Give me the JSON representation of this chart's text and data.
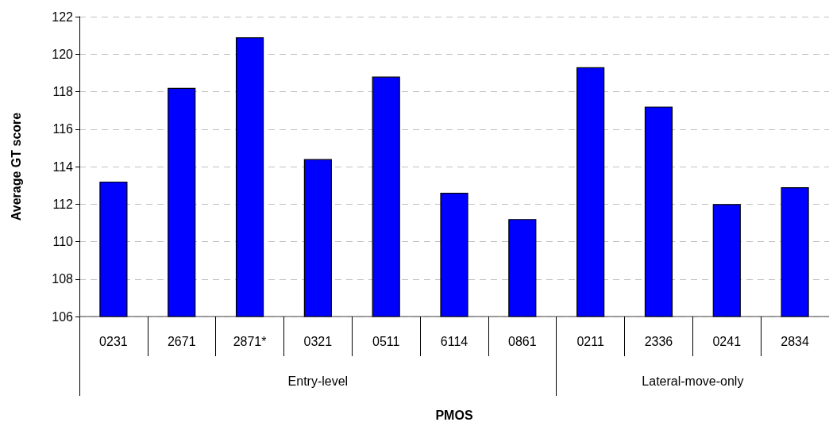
{
  "chart_data": {
    "type": "bar",
    "xlabel": "PMOS",
    "ylabel": "Average GT score",
    "annotations": [
      "Entry-level",
      "Lateral-move-only"
    ],
    "categories": [
      "0231",
      "2671",
      "2871*",
      "0321",
      "0511",
      "6114",
      "0861",
      "0211",
      "2336",
      "0241",
      "2834"
    ],
    "values": [
      113.2,
      118.2,
      120.9,
      114.4,
      118.8,
      112.6,
      111.2,
      119.3,
      117.2,
      112.0,
      112.9
    ],
    "color": "#0000ff",
    "ylim": [
      106,
      122
    ],
    "yticks": [
      106,
      108,
      110,
      112,
      114,
      116,
      118,
      120,
      122
    ],
    "grid": "y"
  }
}
